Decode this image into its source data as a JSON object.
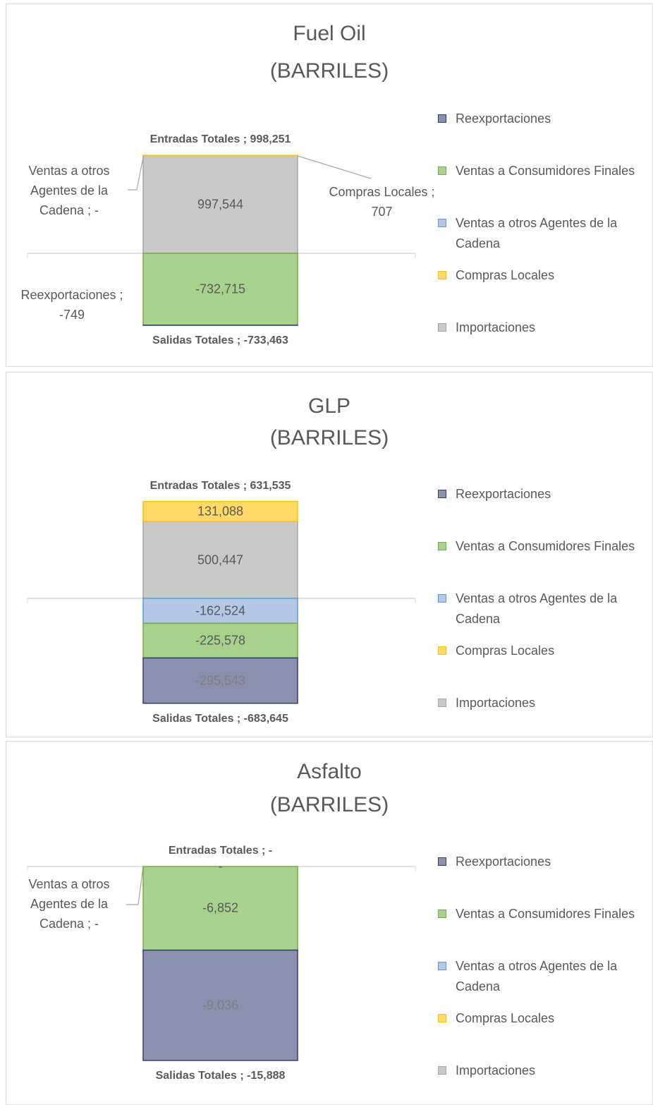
{
  "chart_data": [
    {
      "type": "bar",
      "title": "Fuel Oil",
      "subtitle": "(BARRILES)",
      "ylim": [
        -1000000,
        1000000
      ],
      "series": [
        {
          "name": "Reexportaciones",
          "color": "#8a90ad",
          "values": [
            -749
          ],
          "value_labels": [
            "Reexportaciones ; -749"
          ]
        },
        {
          "name": "Ventas a Consumidores Finales",
          "color": "#a9d18e",
          "values": [
            -732715
          ],
          "value_labels": [
            "-732,715"
          ]
        },
        {
          "name": "Ventas a otros Agentes de la Cadena",
          "color": "#b4c7e7",
          "values": [
            0
          ],
          "value_labels": [
            "Ventas a otros Agentes de la Cadena ; -"
          ]
        },
        {
          "name": "Compras Locales",
          "color": "#ffd966",
          "values": [
            707
          ],
          "value_labels": [
            "Compras Locales ; 707"
          ]
        },
        {
          "name": "Importaciones",
          "color": "#c9c9c9",
          "values": [
            997544
          ],
          "value_labels": [
            "997,544"
          ]
        }
      ],
      "totals": [
        {
          "value": 998251,
          "label": "Entradas Totales ; 998,251"
        },
        {
          "value": -733463,
          "label": "Salidas Totales ; -733,463"
        }
      ]
    },
    {
      "type": "bar",
      "title": "GLP",
      "subtitle": "(BARRILES)",
      "ylim": [
        -800000,
        800000
      ],
      "series": [
        {
          "name": "Reexportaciones",
          "color": "#8a90ad",
          "values": [
            -295543
          ],
          "value_labels": [
            "-295,543"
          ]
        },
        {
          "name": "Ventas a Consumidores Finales",
          "color": "#a9d18e",
          "values": [
            -225578
          ],
          "value_labels": [
            "-225,578"
          ]
        },
        {
          "name": "Ventas a otros Agentes de la Cadena",
          "color": "#b4c7e7",
          "values": [
            -162524
          ],
          "value_labels": [
            "-162,524"
          ]
        },
        {
          "name": "Compras Locales",
          "color": "#ffd966",
          "values": [
            131088
          ],
          "value_labels": [
            "131,088"
          ]
        },
        {
          "name": "Importaciones",
          "color": "#c9c9c9",
          "values": [
            500447
          ],
          "value_labels": [
            "500,447"
          ]
        }
      ],
      "totals": [
        {
          "value": 631535,
          "label": "Entradas Totales ; 631,535"
        },
        {
          "value": -683645,
          "label": "Salidas Totales ; -683,645"
        }
      ]
    },
    {
      "type": "bar",
      "title": "Asfalto",
      "subtitle": "(BARRILES)",
      "ylim": [
        -20000,
        0
      ],
      "series": [
        {
          "name": "Reexportaciones",
          "color": "#8a90ad",
          "values": [
            -9036
          ],
          "value_labels": [
            "-9,036"
          ]
        },
        {
          "name": "Ventas a Consumidores Finales",
          "color": "#a9d18e",
          "values": [
            -6852
          ],
          "value_labels": [
            "-6,852"
          ]
        },
        {
          "name": "Ventas a otros Agentes de la Cadena",
          "color": "#b4c7e7",
          "values": [
            0
          ],
          "value_labels": [
            "Ventas a otros Agentes de la Cadena ; -"
          ]
        },
        {
          "name": "Compras Locales",
          "color": "#ffd966",
          "values": [
            0
          ],
          "value_labels": [
            null
          ]
        },
        {
          "name": "Importaciones",
          "color": "#c9c9c9",
          "values": [
            0
          ],
          "value_labels": [
            "-"
          ]
        }
      ],
      "totals": [
        {
          "value": 0,
          "label": "Entradas Totales ; -"
        },
        {
          "value": -15888,
          "label": "Salidas Totales ; -15,888"
        }
      ]
    }
  ]
}
